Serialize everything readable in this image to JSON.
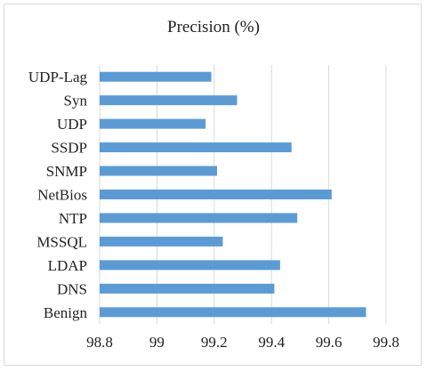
{
  "chart_data": {
    "type": "bar",
    "orientation": "horizontal",
    "title": "Precision (%)",
    "categories": [
      "Benign",
      "DNS",
      "LDAP",
      "MSSQL",
      "NTP",
      "NetBios",
      "SNMP",
      "SSDP",
      "UDP",
      "Syn",
      "UDP-Lag"
    ],
    "values": [
      99.73,
      99.41,
      99.43,
      99.23,
      99.49,
      99.61,
      99.21,
      99.47,
      99.17,
      99.28,
      99.19
    ],
    "xlim": [
      98.8,
      99.8
    ],
    "xticks": [
      "98.8",
      "99",
      "99.2",
      "99.4",
      "99.6",
      "99.8"
    ],
    "grid": true,
    "bar_color": "#5b9bd5"
  }
}
